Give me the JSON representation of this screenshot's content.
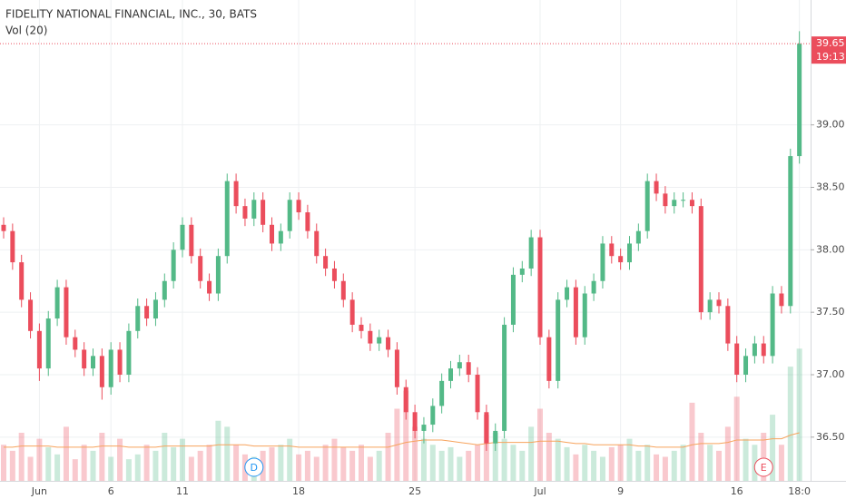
{
  "chart_data": {
    "type": "candlestick",
    "title": "FIDELITY NATIONAL FINANCIAL, INC., 30, BATS",
    "subtitle": "Vol (20)",
    "categories": [
      null,
      null,
      null,
      null,
      "Jun",
      null,
      null,
      null,
      null,
      null,
      null,
      null,
      "6",
      null,
      null,
      null,
      null,
      null,
      null,
      null,
      "11",
      null,
      null,
      null,
      null,
      null,
      null,
      null,
      null,
      null,
      null,
      null,
      null,
      "18",
      null,
      null,
      null,
      null,
      null,
      null,
      null,
      null,
      null,
      null,
      null,
      null,
      "25",
      null,
      null,
      null,
      null,
      null,
      null,
      null,
      null,
      null,
      null,
      null,
      null,
      null,
      "Jul",
      null,
      null,
      null,
      null,
      null,
      null,
      null,
      null,
      "9",
      null,
      null,
      null,
      null,
      null,
      null,
      null,
      null,
      null,
      null,
      null,
      null,
      "16",
      null,
      null,
      null,
      null,
      null,
      null,
      "18:0"
    ],
    "open": [
      38.2,
      38.15,
      37.9,
      37.6,
      37.35,
      37.05,
      37.45,
      37.7,
      37.3,
      37.2,
      37.05,
      37.15,
      36.9,
      37.2,
      37.0,
      37.35,
      37.55,
      37.45,
      37.6,
      37.75,
      38.0,
      38.2,
      37.95,
      37.75,
      37.65,
      37.95,
      38.55,
      38.35,
      38.25,
      38.4,
      38.2,
      38.05,
      38.15,
      38.4,
      38.3,
      38.15,
      37.95,
      37.85,
      37.75,
      37.6,
      37.4,
      37.35,
      37.25,
      37.3,
      37.2,
      36.9,
      36.7,
      36.55,
      36.6,
      36.75,
      36.95,
      37.05,
      37.1,
      37.0,
      36.7,
      36.45,
      36.55,
      37.4,
      37.8,
      37.85,
      38.1,
      37.3,
      36.95,
      37.6,
      37.7,
      37.3,
      37.65,
      37.75,
      38.05,
      37.95,
      37.9,
      38.05,
      38.15,
      38.55,
      38.45,
      38.35,
      38.4,
      38.4,
      38.35,
      37.5,
      37.6,
      37.55,
      37.25,
      37.0,
      37.15,
      37.25,
      37.15,
      37.65,
      37.55,
      38.75
    ],
    "high": [
      38.26,
      38.21,
      37.96,
      37.66,
      37.41,
      37.51,
      37.76,
      37.76,
      37.36,
      37.26,
      37.21,
      37.21,
      37.26,
      37.26,
      37.41,
      37.61,
      37.61,
      37.66,
      37.81,
      38.06,
      38.26,
      38.26,
      38.01,
      37.81,
      38.01,
      38.61,
      38.61,
      38.41,
      38.46,
      38.46,
      38.26,
      38.21,
      38.46,
      38.46,
      38.36,
      38.21,
      38.01,
      37.91,
      37.81,
      37.66,
      37.46,
      37.41,
      37.36,
      37.36,
      37.26,
      36.96,
      36.76,
      36.66,
      36.81,
      37.01,
      37.11,
      37.16,
      37.16,
      37.06,
      36.76,
      36.61,
      37.46,
      37.86,
      37.91,
      38.16,
      38.16,
      37.36,
      37.66,
      37.76,
      37.76,
      37.71,
      37.81,
      38.11,
      38.11,
      38.01,
      38.11,
      38.21,
      38.61,
      38.61,
      38.51,
      38.46,
      38.46,
      38.46,
      38.41,
      37.66,
      37.66,
      37.61,
      37.31,
      37.21,
      37.31,
      37.31,
      37.71,
      37.71,
      38.81,
      39.75
    ],
    "low": [
      38.09,
      37.84,
      37.54,
      37.29,
      36.95,
      36.99,
      37.39,
      37.24,
      37.14,
      36.99,
      36.99,
      36.8,
      36.84,
      36.94,
      36.94,
      37.29,
      37.39,
      37.39,
      37.54,
      37.69,
      37.94,
      37.89,
      37.69,
      37.59,
      37.59,
      37.89,
      38.29,
      38.19,
      38.19,
      38.14,
      37.99,
      37.99,
      38.09,
      38.24,
      38.09,
      37.89,
      37.79,
      37.69,
      37.54,
      37.34,
      37.29,
      37.19,
      37.19,
      37.14,
      36.84,
      36.64,
      36.49,
      36.45,
      36.54,
      36.69,
      36.89,
      36.99,
      36.94,
      36.64,
      36.39,
      36.39,
      36.49,
      37.34,
      37.74,
      37.79,
      37.24,
      36.89,
      36.89,
      37.54,
      37.24,
      37.24,
      37.59,
      37.69,
      37.89,
      37.84,
      37.84,
      37.99,
      38.09,
      38.39,
      38.29,
      38.29,
      38.34,
      38.29,
      37.44,
      37.44,
      37.49,
      37.19,
      36.94,
      36.94,
      37.09,
      37.09,
      37.09,
      37.49,
      37.49,
      38.69
    ],
    "close": [
      38.15,
      37.9,
      37.6,
      37.35,
      37.05,
      37.45,
      37.7,
      37.3,
      37.2,
      37.05,
      37.15,
      36.9,
      37.2,
      37.0,
      37.35,
      37.55,
      37.45,
      37.6,
      37.75,
      38.0,
      38.2,
      37.95,
      37.75,
      37.65,
      37.95,
      38.55,
      38.35,
      38.25,
      38.4,
      38.2,
      38.05,
      38.15,
      38.4,
      38.3,
      38.15,
      37.95,
      37.85,
      37.75,
      37.6,
      37.4,
      37.35,
      37.25,
      37.3,
      37.2,
      36.9,
      36.7,
      36.55,
      36.6,
      36.75,
      36.95,
      37.05,
      37.1,
      37.0,
      36.7,
      36.45,
      36.55,
      37.4,
      37.8,
      37.85,
      38.1,
      37.3,
      36.95,
      37.6,
      37.7,
      37.3,
      37.65,
      37.75,
      38.05,
      37.95,
      37.9,
      38.05,
      38.15,
      38.55,
      38.45,
      38.35,
      38.4,
      38.4,
      38.35,
      37.5,
      37.6,
      37.55,
      37.25,
      37.0,
      37.15,
      37.25,
      37.15,
      37.65,
      37.55,
      38.75,
      39.65
    ],
    "volume": [
      30,
      25,
      40,
      20,
      35,
      28,
      22,
      45,
      18,
      30,
      25,
      40,
      20,
      35,
      18,
      22,
      30,
      25,
      40,
      28,
      35,
      20,
      25,
      30,
      50,
      45,
      30,
      22,
      20,
      25,
      28,
      30,
      35,
      22,
      25,
      20,
      30,
      35,
      28,
      25,
      30,
      20,
      25,
      40,
      60,
      75,
      45,
      35,
      30,
      25,
      28,
      20,
      25,
      30,
      55,
      40,
      35,
      30,
      25,
      45,
      60,
      40,
      35,
      28,
      22,
      30,
      25,
      20,
      28,
      30,
      35,
      25,
      30,
      22,
      20,
      25,
      30,
      65,
      40,
      30,
      25,
      45,
      70,
      35,
      30,
      40,
      55,
      30,
      95,
      110
    ],
    "volume_ma": [
      28,
      28,
      29,
      29,
      29,
      29,
      28,
      28,
      28,
      28,
      28,
      29,
      29,
      29,
      28,
      28,
      28,
      28,
      29,
      29,
      29,
      29,
      29,
      29,
      30,
      30,
      30,
      30,
      29,
      29,
      29,
      29,
      29,
      28,
      28,
      28,
      28,
      28,
      28,
      28,
      28,
      28,
      28,
      28,
      30,
      32,
      33,
      34,
      34,
      34,
      33,
      32,
      31,
      30,
      31,
      32,
      32,
      32,
      32,
      32,
      33,
      33,
      33,
      32,
      31,
      31,
      30,
      30,
      30,
      30,
      30,
      29,
      29,
      28,
      28,
      28,
      28,
      30,
      31,
      31,
      31,
      32,
      34,
      34,
      34,
      34,
      35,
      35,
      38,
      40
    ],
    "up_color": "#53b987",
    "down_color": "#eb4d5c",
    "ma_color": "#f7a35c",
    "ylim": [
      36.15,
      40.0
    ],
    "yticks": [
      {
        "value": 36.5,
        "label": "36.50"
      },
      {
        "value": 37,
        "label": "37.00"
      },
      {
        "value": 37.5,
        "label": "37.50"
      },
      {
        "value": 38,
        "label": "38.00"
      },
      {
        "value": 38.5,
        "label": "38.50"
      },
      {
        "value": 39,
        "label": "39.00"
      }
    ],
    "y2lim": [
      0,
      400
    ],
    "last_price": 39.65,
    "countdown": "19:13",
    "events": [
      {
        "label": "D",
        "index": 28
      },
      {
        "label": "E",
        "index": 85
      }
    ],
    "grid": true
  }
}
